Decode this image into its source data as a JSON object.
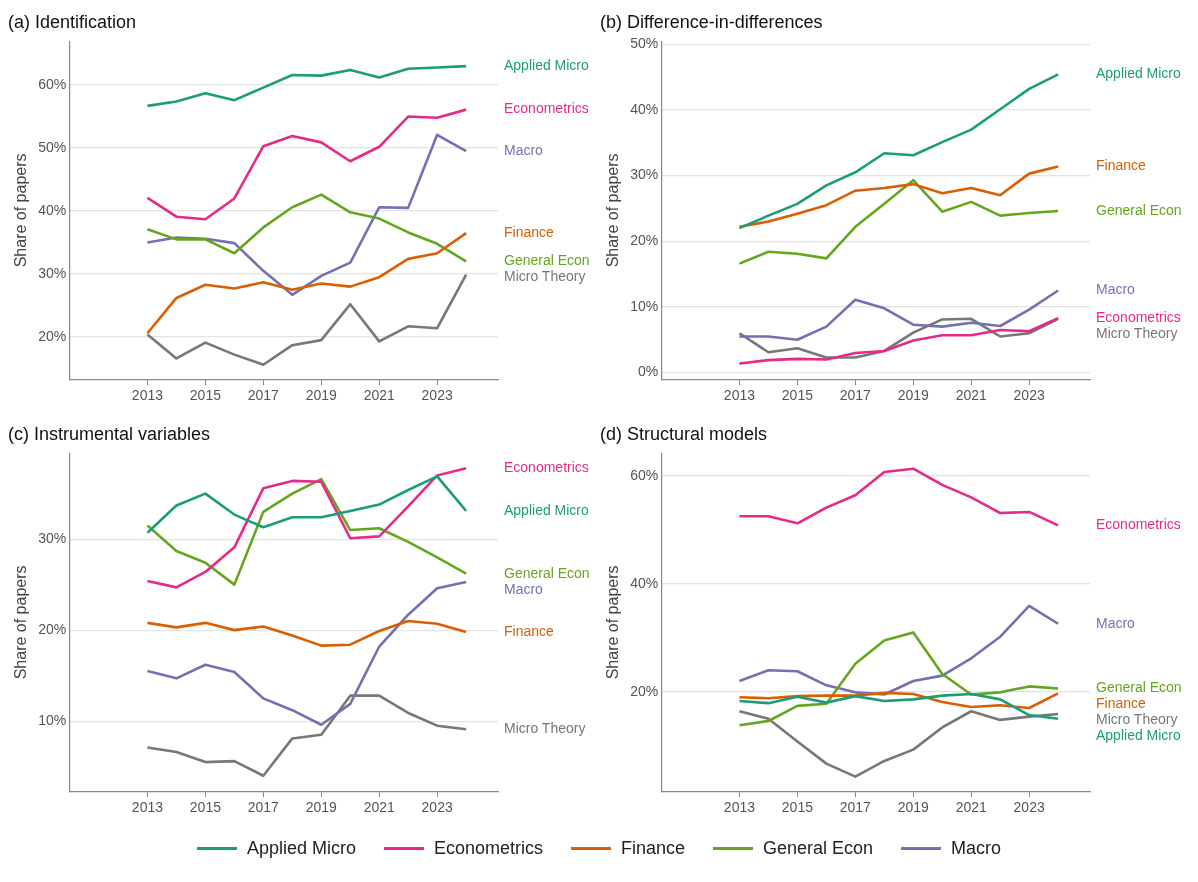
{
  "chart_data": [
    {
      "type": "line",
      "title": "(a) Identification",
      "ylabel": "Share of papers",
      "x": [
        2013,
        2014,
        2015,
        2016,
        2017,
        2018,
        2019,
        2020,
        2021,
        2022,
        2023,
        2024
      ],
      "xlim": [
        2010.3,
        2025.1
      ],
      "xticks": [
        2013,
        2015,
        2017,
        2019,
        2021,
        2023
      ],
      "ylim": [
        13.3,
        66.9
      ],
      "yticks": [
        {
          "value": 20,
          "label": "20%"
        },
        {
          "value": 30,
          "label": "30%"
        },
        {
          "value": 40,
          "label": "40%"
        },
        {
          "value": 50,
          "label": "50%"
        },
        {
          "value": 60,
          "label": "60%"
        }
      ],
      "grid": "y",
      "line_style": "solid",
      "marker": "none",
      "series": [
        {
          "name": "Applied Micro",
          "color": "#1b9e77",
          "values": [
            56.7,
            57.4,
            58.7,
            57.6,
            59.6,
            61.6,
            61.5,
            62.4,
            61.2,
            62.6,
            62.8,
            63.0
          ]
        },
        {
          "name": "Econometrics",
          "color": "#e7298a",
          "values": [
            42.1,
            39.1,
            38.7,
            42.0,
            50.3,
            51.9,
            50.9,
            47.9,
            50.2,
            55.0,
            54.8,
            56.1
          ]
        },
        {
          "name": "Finance",
          "color": "#d95f02",
          "values": [
            20.6,
            26.2,
            28.3,
            27.7,
            28.7,
            27.5,
            28.5,
            28.0,
            29.5,
            32.4,
            33.3,
            36.5
          ]
        },
        {
          "name": "General Econ",
          "color": "#66a61e",
          "values": [
            37.1,
            35.5,
            35.5,
            33.3,
            37.4,
            40.6,
            42.6,
            39.8,
            38.8,
            36.6,
            34.8,
            32.0
          ]
        },
        {
          "name": "Macro",
          "color": "#7570b3",
          "values": [
            35.0,
            35.8,
            35.6,
            34.9,
            30.5,
            26.7,
            29.7,
            31.8,
            40.6,
            40.5,
            52.1,
            49.5
          ]
        },
        {
          "name": "Micro Theory",
          "color": "#777777",
          "values": [
            20.4,
            16.6,
            19.1,
            17.2,
            15.6,
            18.7,
            19.5,
            25.2,
            19.3,
            21.7,
            21.4,
            29.9
          ]
        }
      ]
    },
    {
      "type": "line",
      "title": "(b) Difference-in-differences",
      "ylabel": "Share of papers",
      "x": [
        2013,
        2014,
        2015,
        2016,
        2017,
        2018,
        2019,
        2020,
        2021,
        2022,
        2023,
        2024
      ],
      "xlim": [
        2010.3,
        2025.1
      ],
      "xticks": [
        2013,
        2015,
        2017,
        2019,
        2021,
        2023
      ],
      "ylim": [
        -1,
        50.4
      ],
      "yticks": [
        {
          "value": 0,
          "label": "0%"
        },
        {
          "value": 10,
          "label": "10%"
        },
        {
          "value": 20,
          "label": "20%"
        },
        {
          "value": 30,
          "label": "30%"
        },
        {
          "value": 40,
          "label": "40%"
        },
        {
          "value": 50,
          "label": "50%"
        }
      ],
      "grid": "y",
      "line_style": "solid",
      "marker": "none",
      "series": [
        {
          "name": "Applied Micro",
          "color": "#1b9e77",
          "values": [
            22.0,
            23.9,
            25.7,
            28.5,
            30.5,
            33.4,
            33.1,
            35.1,
            37.0,
            40.1,
            43.2,
            45.4
          ]
        },
        {
          "name": "Econometrics",
          "color": "#e7298a",
          "values": [
            1.4,
            1.9,
            2.1,
            2.0,
            3.0,
            3.3,
            4.9,
            5.7,
            5.7,
            6.5,
            6.3,
            8.3
          ]
        },
        {
          "name": "Finance",
          "color": "#d95f02",
          "values": [
            22.2,
            23.0,
            24.2,
            25.5,
            27.7,
            28.1,
            28.7,
            27.3,
            28.1,
            27.0,
            30.3,
            31.4
          ]
        },
        {
          "name": "General Econ",
          "color": "#66a61e",
          "values": [
            16.6,
            18.4,
            18.1,
            17.4,
            22.2,
            25.7,
            29.3,
            24.5,
            26.0,
            23.9,
            24.3,
            24.6
          ]
        },
        {
          "name": "Macro",
          "color": "#7570b3",
          "values": [
            5.5,
            5.5,
            5.0,
            7.0,
            11.1,
            9.8,
            7.3,
            7.0,
            7.6,
            7.1,
            9.6,
            12.5
          ]
        },
        {
          "name": "Micro Theory",
          "color": "#777777",
          "values": [
            6.0,
            3.1,
            3.7,
            2.3,
            2.3,
            3.3,
            6.1,
            8.1,
            8.2,
            5.5,
            6.0,
            8.2
          ]
        }
      ]
    },
    {
      "type": "line",
      "title": "(c) Instrumental variables",
      "ylabel": "Share of papers",
      "x": [
        2013,
        2014,
        2015,
        2016,
        2017,
        2018,
        2019,
        2020,
        2021,
        2022,
        2023,
        2024
      ],
      "xlim": [
        2010.3,
        2025.1
      ],
      "xticks": [
        2013,
        2015,
        2017,
        2019,
        2021,
        2023
      ],
      "ylim": [
        2.3,
        39.4
      ],
      "yticks": [
        {
          "value": 10,
          "label": "10%"
        },
        {
          "value": 20,
          "label": "20%"
        },
        {
          "value": 30,
          "label": "30%"
        }
      ],
      "grid": "y",
      "line_style": "solid",
      "marker": "none",
      "series": [
        {
          "name": "Applied Micro",
          "color": "#1b9e77",
          "values": [
            30.7,
            33.7,
            35.0,
            32.7,
            31.3,
            32.4,
            32.4,
            33.1,
            33.8,
            35.4,
            36.9,
            33.1
          ]
        },
        {
          "name": "Econometrics",
          "color": "#e7298a",
          "values": [
            25.4,
            24.7,
            26.4,
            29.1,
            35.6,
            36.4,
            36.3,
            30.1,
            30.3,
            33.6,
            37.0,
            37.8
          ]
        },
        {
          "name": "Finance",
          "color": "#d95f02",
          "values": [
            20.8,
            20.3,
            20.8,
            20.0,
            20.4,
            19.4,
            18.3,
            18.4,
            19.9,
            21.0,
            20.7,
            19.8
          ]
        },
        {
          "name": "General Econ",
          "color": "#66a61e",
          "values": [
            31.5,
            28.7,
            27.4,
            25.0,
            33.0,
            35.0,
            36.6,
            31.0,
            31.2,
            29.7,
            28.0,
            26.2
          ]
        },
        {
          "name": "Macro",
          "color": "#7570b3",
          "values": [
            15.5,
            14.7,
            16.2,
            15.4,
            12.5,
            11.2,
            9.6,
            11.9,
            18.2,
            21.7,
            24.6,
            25.3
          ]
        },
        {
          "name": "Micro Theory",
          "color": "#777777",
          "values": [
            7.1,
            6.6,
            5.5,
            5.6,
            4.0,
            8.1,
            8.5,
            12.8,
            12.8,
            10.9,
            9.5,
            9.1
          ]
        }
      ]
    },
    {
      "type": "line",
      "title": "(d) Structural models",
      "ylabel": "Share of papers",
      "x": [
        2013,
        2014,
        2015,
        2016,
        2017,
        2018,
        2019,
        2020,
        2021,
        2022,
        2023,
        2024
      ],
      "xlim": [
        2010.3,
        2025.1
      ],
      "xticks": [
        2013,
        2015,
        2017,
        2019,
        2021,
        2023
      ],
      "ylim": [
        1.6,
        64.1
      ],
      "yticks": [
        {
          "value": 20,
          "label": "20%"
        },
        {
          "value": 40,
          "label": "40%"
        },
        {
          "value": 60,
          "label": "60%"
        }
      ],
      "grid": "y",
      "line_style": "solid",
      "marker": "none",
      "legend": "bottom",
      "series": [
        {
          "name": "Applied Micro",
          "color": "#1b9e77",
          "values": [
            18.3,
            17.9,
            19.1,
            18.0,
            19.2,
            18.3,
            18.6,
            19.3,
            19.6,
            18.6,
            15.7,
            15.0
          ]
        },
        {
          "name": "Econometrics",
          "color": "#e7298a",
          "values": [
            52.5,
            52.5,
            51.2,
            54.1,
            56.4,
            60.7,
            61.3,
            58.3,
            56.0,
            53.1,
            53.3,
            50.8
          ]
        },
        {
          "name": "Finance",
          "color": "#d95f02",
          "values": [
            19.0,
            18.8,
            19.2,
            19.3,
            19.3,
            19.8,
            19.6,
            18.1,
            17.2,
            17.5,
            17.0,
            19.7
          ]
        },
        {
          "name": "General Econ",
          "color": "#66a61e",
          "values": [
            13.8,
            14.6,
            17.4,
            17.8,
            25.2,
            29.5,
            31.0,
            23.3,
            19.5,
            19.9,
            21.0,
            20.6
          ]
        },
        {
          "name": "Macro",
          "color": "#7570b3",
          "values": [
            22.0,
            24.0,
            23.8,
            21.2,
            19.9,
            19.5,
            22.0,
            23.0,
            26.2,
            30.2,
            35.9,
            32.6
          ]
        },
        {
          "name": "Micro Theory",
          "color": "#777777",
          "values": [
            16.4,
            15.0,
            10.8,
            6.7,
            4.3,
            7.2,
            9.3,
            13.4,
            16.4,
            14.8,
            15.4,
            15.9
          ]
        }
      ]
    }
  ]
}
